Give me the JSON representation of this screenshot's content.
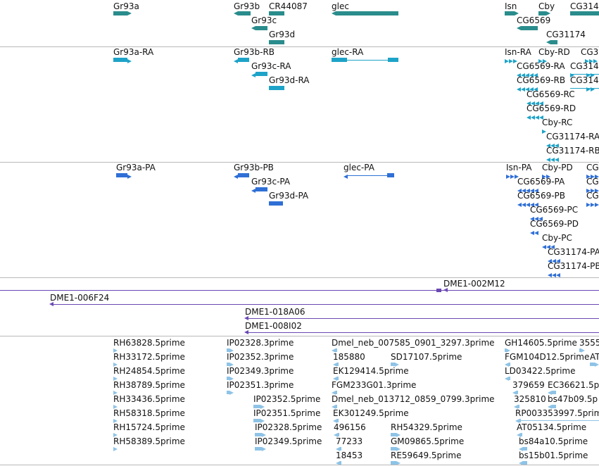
{
  "colors": {
    "gene": "#2a8c8c",
    "transcript": "#1ea3c8",
    "protein": "#2f6fd6",
    "clone": "#6a48b4",
    "est": "#8ec3e6"
  },
  "tracks": {
    "genes": {
      "labels": {
        "gr93a": "Gr93a",
        "gr93b": "Gr93b",
        "cr44087": "CR44087",
        "glec": "glec",
        "isn": "Isn",
        "cby": "Cby",
        "cg314": "CG314",
        "gr93c": "Gr93c",
        "cg6569": "CG6569",
        "gr93d": "Gr93d",
        "cg31174": "CG31174"
      }
    },
    "transcripts": {
      "labels": {
        "gr93a_ra": "Gr93a-RA",
        "gr93b_rb": "Gr93b-RB",
        "glec_ra": "glec-RA",
        "isn_ra": "Isn-RA",
        "cby_rd": "Cby-RD",
        "cg3": "CG3",
        "gr93c_ra": "Gr93c-RA",
        "cg6569_ra": "CG6569-RA",
        "cg314_a": "CG314",
        "gr93d_ra": "Gr93d-RA",
        "cg6569_rb": "CG6569-RB",
        "cg314_b": "CG314",
        "cg6569_rc": "CG6569-RC",
        "cg6569_rd": "CG6569-RD",
        "cby_rc": "Cby-RC",
        "cg31174_ra": "CG31174-RA",
        "cg31174_rb": "CG31174-RB"
      }
    },
    "proteins": {
      "labels": {
        "gr93a_pa": "Gr93a-PA",
        "gr93b_pb": "Gr93b-PB",
        "glec_pa": "glec-PA",
        "isn_pa": "Isn-PA",
        "cby_pd": "Cby-PD",
        "cg_edge1": "CG",
        "gr93c_pa": "Gr93c-PA",
        "cg6569_pa": "CG6569-PA",
        "cg_edge2": "CG",
        "gr93d_pa": "Gr93d-PA",
        "cg6569_pb": "CG6569-PB",
        "cg_edge3": "CG",
        "cg6569_pc": "CG6569-PC",
        "cg6569_pd": "CG6569-PD",
        "cby_pc": "Cby-PC",
        "cg31174_pa": "CG31174-PA",
        "cg31174_pb": "CG31174-PB"
      }
    },
    "clones": {
      "labels": {
        "c002m12": "DME1-002M12",
        "c006f24": "DME1-006F24",
        "c018a06": "DME1-018A06",
        "c008i02": "DME1-008I02"
      }
    },
    "ests": {
      "labels": {
        "rh63828": "RH63828.5prime",
        "ip02328_3": "IP02328.3prime",
        "dmel007585": "Dmel_neb_007585_0901_3297.3prime",
        "gh14605": "GH14605.5prime",
        "n3555": "3555",
        "rh33172": "RH33172.5prime",
        "ip02352_3": "IP02352.3prime",
        "n185880": "185880",
        "sd17107": "SD17107.5prime",
        "fgm104d12": "FGM104D12.5prime",
        "at_edge": "AT",
        "rh24854": "RH24854.5prime",
        "ip02349_3": "IP02349.3prime",
        "ek129414": "EK129414.5prime",
        "ld03422": "LD03422.5prime",
        "rh38789": "RH38789.5prime",
        "ip02351_3": "IP02351.3prime",
        "fgm233g01": "FGM233G01.3prime",
        "n379659": "379659",
        "ec36621": "EC36621.5p",
        "rh33436": "RH33436.5prime",
        "ip02352_5": "IP02352.5prime",
        "dmel013712": "Dmel_neb_013712_0859_0799.3prime",
        "n325810": "325810",
        "bs47b09": "bs47b09.5p",
        "rh58318": "RH58318.5prime",
        "ip02351_5": "IP02351.5prime",
        "ek301249": "EK301249.5prime",
        "rp003353997": "RP003353997.5prime",
        "rh15724": "RH15724.5prime",
        "ip02328_5": "IP02328.5prime",
        "n496156": "496156",
        "rh54329": "RH54329.5prime",
        "at05134": "AT05134.5prime",
        "rh58389": "RH58389.5prime",
        "ip02349_5": "IP02349.5prime",
        "n77233": "77233",
        "gm09865": "GM09865.5prime",
        "bs84a10": "bs84a10.5prime",
        "n18453": "18453",
        "re59649": "RE59649.5prime",
        "bs15b01": "bs15b01.5prime"
      }
    }
  }
}
